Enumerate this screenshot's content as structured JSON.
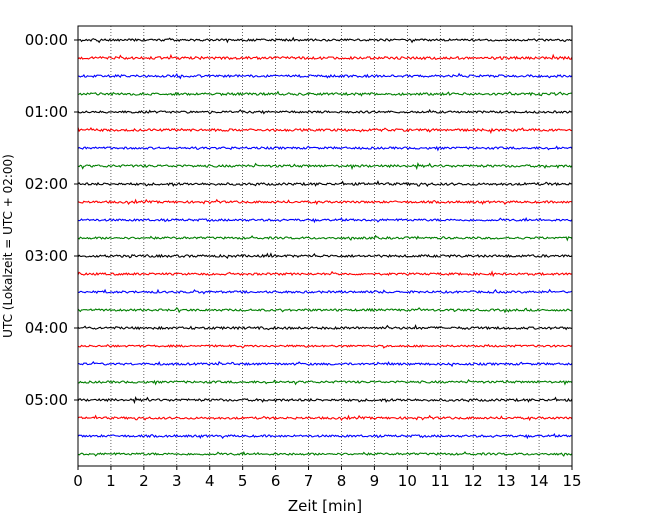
{
  "chart_data": {
    "type": "line",
    "title": "",
    "xlabel": "Zeit  [min]",
    "ylabel": "UTC (Lokalzeit = UTC + 02:00)",
    "xlim": [
      0,
      15
    ],
    "x_ticks": [
      "0",
      "1",
      "2",
      "3",
      "4",
      "5",
      "6",
      "7",
      "8",
      "9",
      "10",
      "11",
      "12",
      "13",
      "14",
      "15"
    ],
    "y_ticks": [
      "00:00",
      "01:00",
      "02:00",
      "03:00",
      "04:00",
      "05:00"
    ],
    "trace_interval_min": 15,
    "grid": "vertical dotted",
    "legend": "none",
    "colors": [
      "#000000",
      "#ff0000",
      "#0000ff",
      "#007f00"
    ],
    "series": [
      {
        "label": "00:00",
        "start_min": 0,
        "color": "#000000",
        "amplitude": 0.8
      },
      {
        "label": "00:15",
        "start_min": 15,
        "color": "#ff0000",
        "amplitude": 1.0
      },
      {
        "label": "00:30",
        "start_min": 30,
        "color": "#0000ff",
        "amplitude": 0.9
      },
      {
        "label": "00:45",
        "start_min": 45,
        "color": "#007f00",
        "amplitude": 0.9
      },
      {
        "label": "01:00",
        "start_min": 60,
        "color": "#000000",
        "amplitude": 0.8
      },
      {
        "label": "01:15",
        "start_min": 75,
        "color": "#ff0000",
        "amplitude": 0.9
      },
      {
        "label": "01:30",
        "start_min": 90,
        "color": "#0000ff",
        "amplitude": 0.8
      },
      {
        "label": "01:45",
        "start_min": 105,
        "color": "#007f00",
        "amplitude": 0.9
      },
      {
        "label": "02:00",
        "start_min": 120,
        "color": "#000000",
        "amplitude": 0.9
      },
      {
        "label": "02:15",
        "start_min": 135,
        "color": "#ff0000",
        "amplitude": 0.8
      },
      {
        "label": "02:30",
        "start_min": 150,
        "color": "#0000ff",
        "amplitude": 0.8
      },
      {
        "label": "02:45",
        "start_min": 165,
        "color": "#007f00",
        "amplitude": 0.8
      },
      {
        "label": "03:00",
        "start_min": 180,
        "color": "#000000",
        "amplitude": 0.9
      },
      {
        "label": "03:15",
        "start_min": 195,
        "color": "#ff0000",
        "amplitude": 0.8
      },
      {
        "label": "03:30",
        "start_min": 210,
        "color": "#0000ff",
        "amplitude": 0.8
      },
      {
        "label": "03:45",
        "start_min": 225,
        "color": "#007f00",
        "amplitude": 0.8
      },
      {
        "label": "04:00",
        "start_min": 240,
        "color": "#000000",
        "amplitude": 0.9
      },
      {
        "label": "04:15",
        "start_min": 255,
        "color": "#ff0000",
        "amplitude": 0.7
      },
      {
        "label": "04:30",
        "start_min": 270,
        "color": "#0000ff",
        "amplitude": 0.8
      },
      {
        "label": "04:45",
        "start_min": 285,
        "color": "#007f00",
        "amplitude": 0.8
      },
      {
        "label": "05:00",
        "start_min": 300,
        "color": "#000000",
        "amplitude": 0.9
      },
      {
        "label": "05:15",
        "start_min": 315,
        "color": "#ff0000",
        "amplitude": 0.8
      },
      {
        "label": "05:30",
        "start_min": 330,
        "color": "#0000ff",
        "amplitude": 0.8
      },
      {
        "label": "05:45",
        "start_min": 345,
        "color": "#007f00",
        "amplitude": 0.8
      }
    ]
  }
}
